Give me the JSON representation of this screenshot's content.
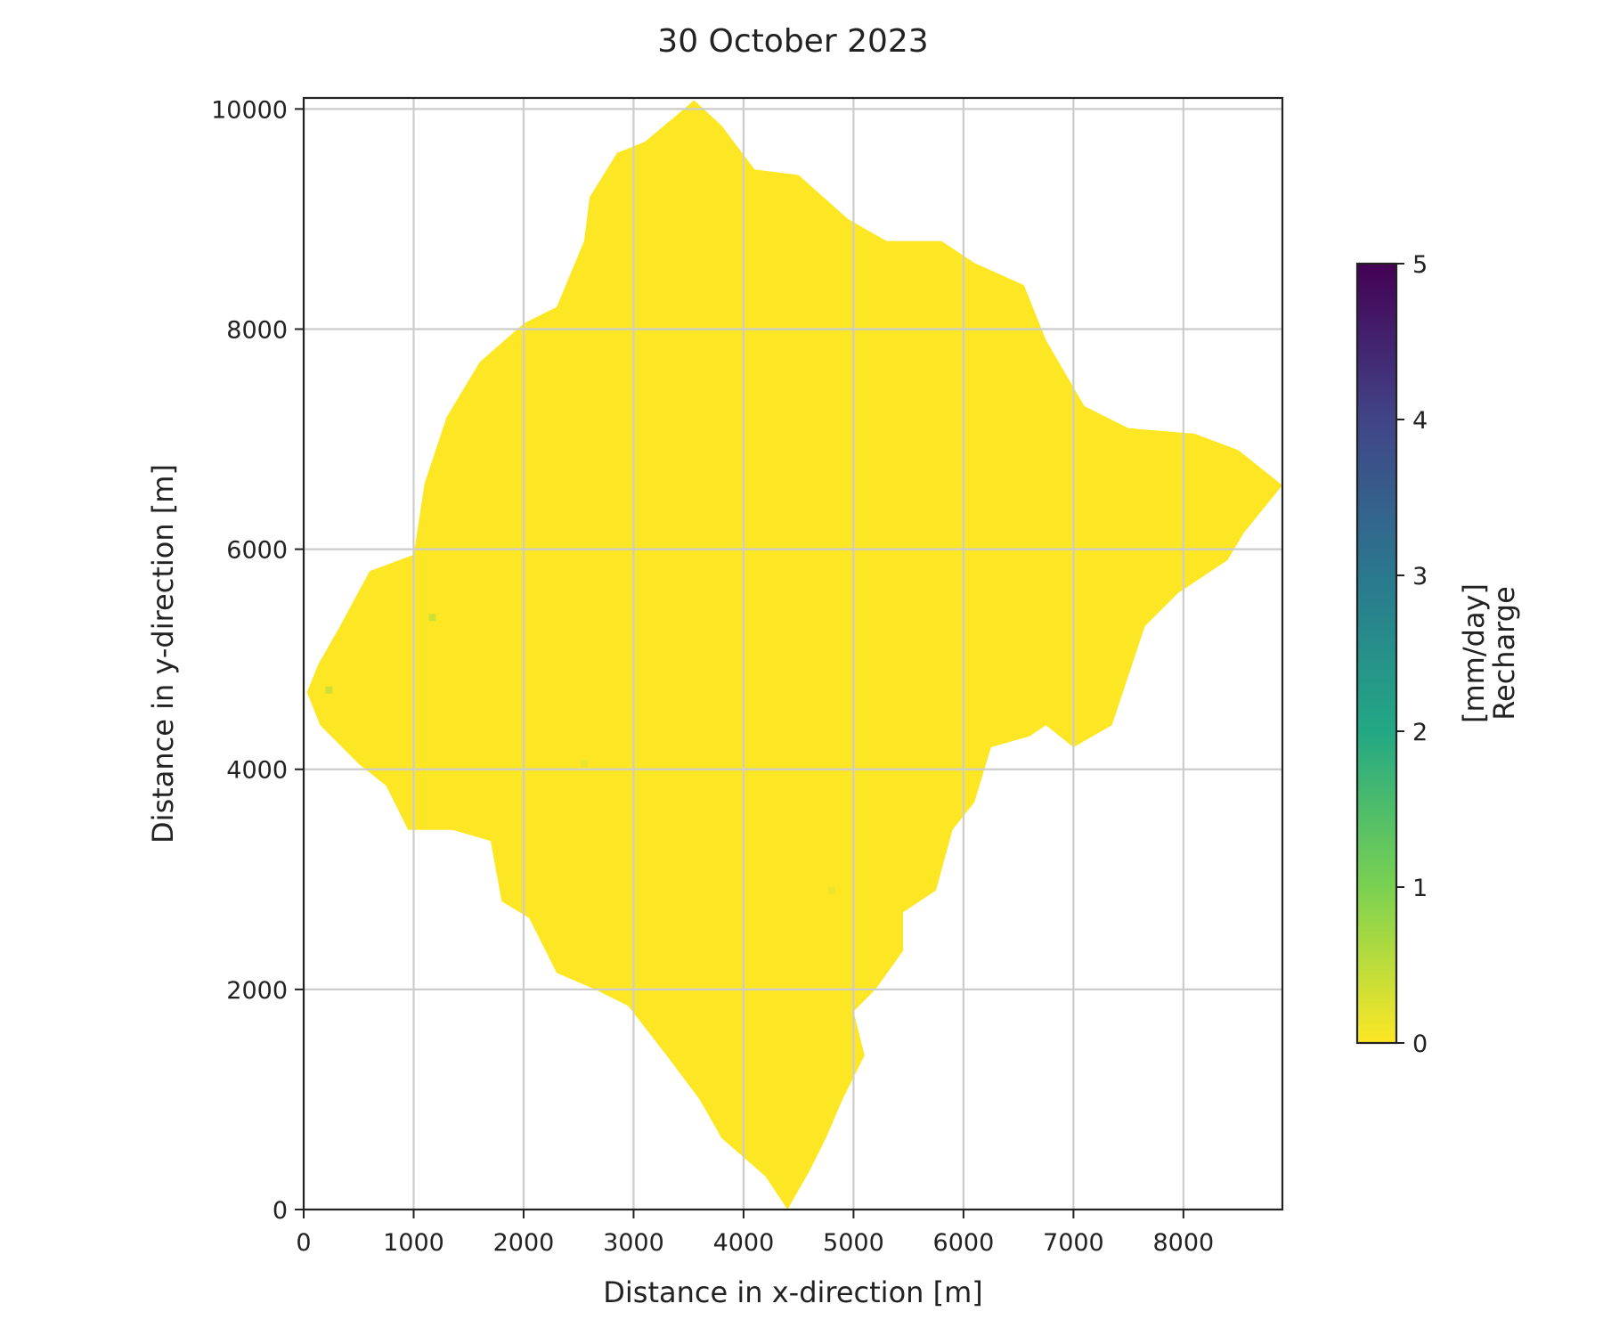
{
  "chart_data": {
    "type": "heatmap",
    "title": "30 October 2023",
    "xlabel": "Distance in x-direction [m]",
    "ylabel": "Distance in y-direction [m]",
    "xlim": [
      0,
      8900
    ],
    "ylim": [
      0,
      10100
    ],
    "xticks": [
      0,
      1000,
      2000,
      3000,
      4000,
      5000,
      6000,
      7000,
      8000
    ],
    "xtick_labels": [
      "0",
      "1000",
      "2000",
      "3000",
      "4000",
      "5000",
      "6000",
      "7000",
      "8000"
    ],
    "yticks": [
      0,
      2000,
      4000,
      6000,
      8000,
      10000
    ],
    "ytick_labels": [
      "0",
      "2000",
      "4000",
      "6000",
      "8000",
      "10000"
    ],
    "grid": true,
    "colormap": "viridis_r",
    "fill_color": "#fde725",
    "colorbar": {
      "label_line1": "Recharge",
      "label_line2": "[mm/day]",
      "min": 0,
      "max": 5,
      "ticks": [
        0,
        1,
        2,
        3,
        4,
        5
      ],
      "tick_labels": [
        "0",
        "1",
        "2",
        "3",
        "4",
        "5"
      ],
      "colors": [
        "#fde725",
        "#7ad151",
        "#22a884",
        "#2a788e",
        "#414487",
        "#440154"
      ]
    },
    "region_value": 0,
    "region_outline": [
      [
        30,
        4700
      ],
      [
        130,
        4950
      ],
      [
        330,
        5300
      ],
      [
        600,
        5800
      ],
      [
        1000,
        5950
      ],
      [
        1100,
        6600
      ],
      [
        1300,
        7200
      ],
      [
        1600,
        7700
      ],
      [
        2000,
        8050
      ],
      [
        2300,
        8200
      ],
      [
        2550,
        8800
      ],
      [
        2600,
        9200
      ],
      [
        2850,
        9600
      ],
      [
        3100,
        9700
      ],
      [
        3400,
        9950
      ],
      [
        3550,
        10080
      ],
      [
        3800,
        9850
      ],
      [
        4100,
        9450
      ],
      [
        4500,
        9400
      ],
      [
        4950,
        9000
      ],
      [
        5300,
        8800
      ],
      [
        5800,
        8800
      ],
      [
        6100,
        8600
      ],
      [
        6550,
        8400
      ],
      [
        6750,
        7900
      ],
      [
        7100,
        7300
      ],
      [
        7500,
        7100
      ],
      [
        8100,
        7050
      ],
      [
        8500,
        6900
      ],
      [
        8900,
        6580
      ],
      [
        8550,
        6150
      ],
      [
        8400,
        5900
      ],
      [
        7950,
        5600
      ],
      [
        7650,
        5300
      ],
      [
        7500,
        4850
      ],
      [
        7350,
        4400
      ],
      [
        7000,
        4200
      ],
      [
        6750,
        4400
      ],
      [
        6600,
        4300
      ],
      [
        6250,
        4200
      ],
      [
        6100,
        3700
      ],
      [
        5900,
        3450
      ],
      [
        5750,
        2900
      ],
      [
        5450,
        2700
      ],
      [
        5450,
        2350
      ],
      [
        5200,
        2000
      ],
      [
        5000,
        1800
      ],
      [
        5100,
        1400
      ],
      [
        4900,
        1000
      ],
      [
        4750,
        650
      ],
      [
        4600,
        350
      ],
      [
        4400,
        0
      ],
      [
        4200,
        300
      ],
      [
        3800,
        650
      ],
      [
        3600,
        1000
      ],
      [
        3300,
        1400
      ],
      [
        2950,
        1850
      ],
      [
        2650,
        2000
      ],
      [
        2300,
        2150
      ],
      [
        2050,
        2650
      ],
      [
        1800,
        2800
      ],
      [
        1700,
        3350
      ],
      [
        1350,
        3450
      ],
      [
        950,
        3450
      ],
      [
        750,
        3850
      ],
      [
        500,
        4050
      ],
      [
        150,
        4400
      ],
      [
        30,
        4700
      ]
    ],
    "low_patches": [
      {
        "x": 230,
        "y": 4720,
        "value": 0.5
      },
      {
        "x": 1170,
        "y": 5380,
        "value": 0.5
      },
      {
        "x": 2550,
        "y": 4050,
        "value": 0.2
      },
      {
        "x": 4800,
        "y": 2900,
        "value": 0.2
      }
    ]
  }
}
